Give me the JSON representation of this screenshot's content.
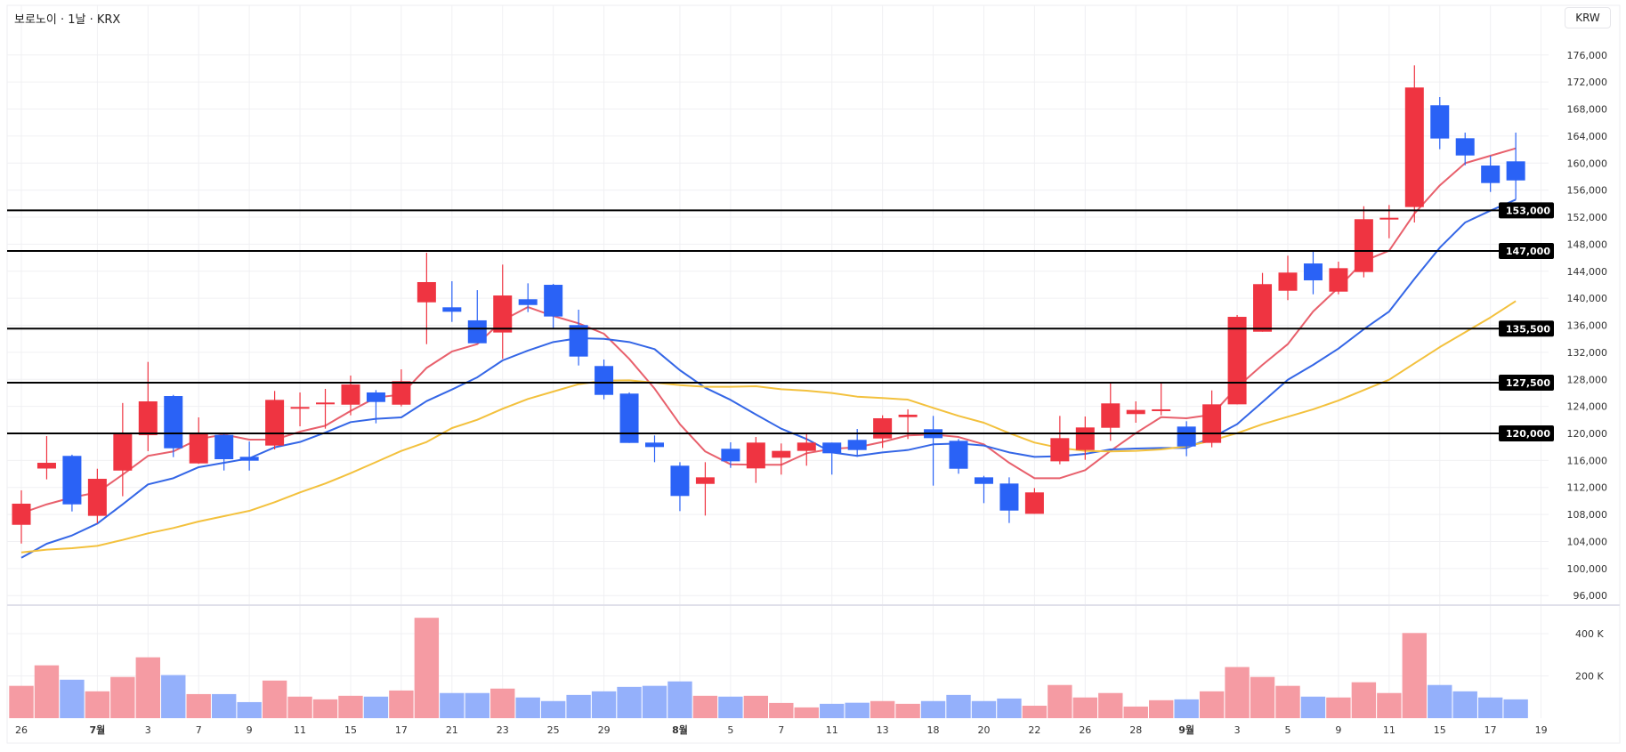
{
  "header": {
    "title": "보로노이 · 1날 · KRX",
    "currency_button": "KRW"
  },
  "colors": {
    "up": "#ef3441",
    "down": "#2a62f6",
    "vol_up": "#f59ba3",
    "vol_down": "#94b0fb",
    "ma_short": "#e8606c",
    "ma_mid": "#3466e6",
    "ma_long": "#f3c13d",
    "level_line": "#000000"
  },
  "chart_data": {
    "type": "candlestick",
    "title": "보로노이 · 1날 · KRX",
    "y_axis": {
      "min": 94000,
      "max": 178000,
      "ticks": [
        96000,
        100000,
        104000,
        108000,
        112000,
        116000,
        120000,
        124000,
        128000,
        132000,
        136000,
        140000,
        144000,
        148000,
        152000,
        156000,
        160000,
        164000,
        168000,
        172000,
        176000
      ]
    },
    "volume_axis": {
      "ticks": [
        {
          "value": 200000,
          "label": "200 K"
        },
        {
          "value": 400000,
          "label": "400 K"
        }
      ]
    },
    "x_labels": [
      {
        "bar": 0,
        "label": "26",
        "month": false
      },
      {
        "bar": 3,
        "label": "7월",
        "month": true
      },
      {
        "bar": 5,
        "label": "3",
        "month": false
      },
      {
        "bar": 7,
        "label": "7",
        "month": false
      },
      {
        "bar": 9,
        "label": "9",
        "month": false
      },
      {
        "bar": 11,
        "label": "11",
        "month": false
      },
      {
        "bar": 13,
        "label": "15",
        "month": false
      },
      {
        "bar": 15,
        "label": "17",
        "month": false
      },
      {
        "bar": 17,
        "label": "21",
        "month": false
      },
      {
        "bar": 19,
        "label": "23",
        "month": false
      },
      {
        "bar": 21,
        "label": "25",
        "month": false
      },
      {
        "bar": 23,
        "label": "29",
        "month": false
      },
      {
        "bar": 26,
        "label": "8월",
        "month": true
      },
      {
        "bar": 28,
        "label": "5",
        "month": false
      },
      {
        "bar": 30,
        "label": "7",
        "month": false
      },
      {
        "bar": 32,
        "label": "11",
        "month": false
      },
      {
        "bar": 34,
        "label": "13",
        "month": false
      },
      {
        "bar": 36,
        "label": "18",
        "month": false
      },
      {
        "bar": 38,
        "label": "20",
        "month": false
      },
      {
        "bar": 40,
        "label": "22",
        "month": false
      },
      {
        "bar": 42,
        "label": "26",
        "month": false
      },
      {
        "bar": 44,
        "label": "28",
        "month": false
      },
      {
        "bar": 46,
        "label": "9월",
        "month": true
      },
      {
        "bar": 48,
        "label": "3",
        "month": false
      },
      {
        "bar": 50,
        "label": "5",
        "month": false
      },
      {
        "bar": 52,
        "label": "9",
        "month": false
      },
      {
        "bar": 54,
        "label": "11",
        "month": false
      },
      {
        "bar": 56,
        "label": "15",
        "month": false
      },
      {
        "bar": 58,
        "label": "17",
        "month": false
      },
      {
        "bar": 60,
        "label": "19",
        "month": false
      }
    ],
    "level_lines": [
      {
        "value": 153000,
        "label": "153,000"
      },
      {
        "value": 147000,
        "label": "147,000"
      },
      {
        "value": 135500,
        "label": "135,500"
      },
      {
        "value": 127500,
        "label": "127,500"
      },
      {
        "value": 120000,
        "label": "120,000"
      }
    ],
    "candles_fields": [
      "date",
      "open",
      "high",
      "low",
      "close",
      "volume"
    ],
    "candles": [
      [
        "06-26",
        106470,
        111570,
        103700,
        109600,
        153000
      ],
      [
        "06-27",
        114800,
        119600,
        113200,
        115650,
        250000
      ],
      [
        "06-30",
        116670,
        116850,
        108450,
        109500,
        182000
      ],
      [
        "07-01",
        107800,
        114770,
        106700,
        113280,
        127000
      ],
      [
        "07-02",
        114500,
        124500,
        110700,
        120040,
        195000
      ],
      [
        "07-03",
        119740,
        130580,
        117370,
        124740,
        288000
      ],
      [
        "07-04",
        125530,
        125700,
        116490,
        117800,
        204000
      ],
      [
        "07-07",
        115560,
        122370,
        115500,
        120090,
        114000
      ],
      [
        "07-08",
        119780,
        119900,
        114510,
        116180,
        114000
      ],
      [
        "07-09",
        116530,
        118800,
        114500,
        115960,
        76000
      ],
      [
        "07-10",
        118200,
        126280,
        117630,
        124960,
        178000
      ],
      [
        "07-11",
        123900,
        126060,
        121050,
        123910,
        102000
      ],
      [
        "07-14",
        124560,
        126590,
        120700,
        124570,
        89000
      ],
      [
        "07-15",
        124250,
        128560,
        122680,
        127240,
        106000
      ],
      [
        "07-16",
        126060,
        126410,
        121490,
        124650,
        102000
      ],
      [
        "07-17",
        124250,
        129480,
        123990,
        127730,
        131000
      ],
      [
        "07-18",
        139400,
        146740,
        133210,
        142390,
        475000
      ],
      [
        "07-21",
        138660,
        142520,
        136500,
        138000,
        119000
      ],
      [
        "07-22",
        136730,
        141200,
        133340,
        133340,
        119000
      ],
      [
        "07-23",
        134930,
        144980,
        131020,
        140410,
        140000
      ],
      [
        "07-24",
        139850,
        142210,
        137950,
        139000,
        98000
      ],
      [
        "07-25",
        141990,
        142130,
        135500,
        137300,
        81000
      ],
      [
        "07-28",
        136030,
        138310,
        130050,
        131370,
        110000
      ],
      [
        "07-29",
        129970,
        130930,
        125040,
        125700,
        127000
      ],
      [
        "07-30",
        125890,
        126070,
        118590,
        118590,
        148000
      ],
      [
        "07-31",
        118640,
        119700,
        115740,
        117980,
        153000
      ],
      [
        "08-01",
        115220,
        115740,
        108500,
        110740,
        174000
      ],
      [
        "08-04",
        112530,
        115740,
        107840,
        113500,
        106000
      ],
      [
        "08-05",
        117720,
        118680,
        114900,
        115870,
        102000
      ],
      [
        "08-06",
        114820,
        119470,
        112670,
        118640,
        106000
      ],
      [
        "08-07",
        116400,
        118510,
        113900,
        117410,
        72000
      ],
      [
        "08-08",
        117410,
        119960,
        115220,
        118640,
        51000
      ],
      [
        "08-11",
        118640,
        118640,
        113900,
        117060,
        68000
      ],
      [
        "08-12",
        119040,
        120660,
        116530,
        117540,
        73000
      ],
      [
        "08-13",
        119250,
        122680,
        117850,
        122240,
        81000
      ],
      [
        "08-14",
        122410,
        123560,
        119170,
        122770,
        68000
      ],
      [
        "08-18",
        120620,
        122590,
        112270,
        119300,
        81000
      ],
      [
        "08-19",
        118900,
        119170,
        114030,
        114770,
        110000
      ],
      [
        "08-20",
        113500,
        113720,
        109680,
        112530,
        81000
      ],
      [
        "08-21",
        112580,
        113500,
        106740,
        108580,
        93000
      ],
      [
        "08-22",
        108100,
        111920,
        108100,
        111270,
        59000
      ],
      [
        "08-25",
        115870,
        122590,
        115430,
        119300,
        157000
      ],
      [
        "08-26",
        117540,
        122500,
        116090,
        120880,
        98000
      ],
      [
        "08-27",
        120830,
        127420,
        118900,
        124440,
        119000
      ],
      [
        "08-28",
        122860,
        124740,
        121580,
        123470,
        55000
      ],
      [
        "08-29",
        123420,
        127600,
        122680,
        123560,
        85000
      ],
      [
        "09-01",
        121010,
        121800,
        116620,
        118070,
        89000
      ],
      [
        "09-02",
        118600,
        126360,
        117940,
        124300,
        127000
      ],
      [
        "09-03",
        124300,
        137520,
        124300,
        137250,
        242000
      ],
      [
        "09-04",
        135050,
        143750,
        135050,
        142090,
        195000
      ],
      [
        "09-05",
        141110,
        146300,
        139720,
        143800,
        153000
      ],
      [
        "09-08",
        145150,
        147000,
        140590,
        142650,
        102000
      ],
      [
        "09-09",
        140980,
        145420,
        140590,
        144450,
        98000
      ],
      [
        "09-10",
        143880,
        153620,
        143090,
        151700,
        170000
      ],
      [
        "09-11",
        151740,
        153800,
        148880,
        151910,
        119000
      ],
      [
        "09-12",
        153500,
        174480,
        151210,
        171190,
        403000
      ],
      [
        "09-15",
        168560,
        169780,
        162060,
        163640,
        157000
      ],
      [
        "09-16",
        163680,
        164510,
        159680,
        161130,
        127000
      ],
      [
        "09-17",
        159640,
        161090,
        155730,
        157050,
        98000
      ],
      [
        "09-18",
        160260,
        164510,
        154600,
        157440,
        89000
      ]
    ],
    "series": [
      {
        "name": "MA short",
        "color_key": "ma_short",
        "values": [
          108190,
          109500,
          110520,
          111270,
          113900,
          116670,
          117330,
          119170,
          119830,
          119080,
          119080,
          120260,
          121140,
          123330,
          125310,
          125750,
          129700,
          132120,
          133210,
          136730,
          138700,
          137380,
          136290,
          134750,
          131020,
          126630,
          121360,
          117330,
          115430,
          115350,
          115350,
          117060,
          117720,
          117940,
          118730,
          119700,
          119830,
          119470,
          118380,
          115650,
          113370,
          113370,
          114560,
          117410,
          120040,
          122400,
          122240,
          122770,
          126850,
          130140,
          133210,
          138040,
          141570,
          145510,
          147040,
          152530,
          156700,
          159990,
          161090,
          162190
        ]
      },
      {
        "name": "MA mid",
        "color_key": "ma_mid",
        "values": [
          101600,
          103670,
          104900,
          106660,
          109500,
          112450,
          113370,
          115000,
          115650,
          116310,
          117940,
          118730,
          120130,
          121670,
          122150,
          122370,
          124780,
          126490,
          128300,
          130800,
          132250,
          133520,
          134090,
          134000,
          133520,
          132470,
          129350,
          126760,
          124960,
          122800,
          120700,
          119170,
          117190,
          116670,
          117190,
          117540,
          118380,
          118510,
          118200,
          117190,
          116530,
          116620,
          116970,
          117630,
          117760,
          117850,
          117850,
          119380,
          121360,
          124650,
          127940,
          130140,
          132550,
          135410,
          138040,
          142870,
          147480,
          151210,
          152970,
          154600
        ]
      },
      {
        "name": "MA long",
        "color_key": "ma_long",
        "values": [
          102390,
          102790,
          103010,
          103360,
          104240,
          105210,
          106000,
          106960,
          107750,
          108540,
          109820,
          111270,
          112580,
          114110,
          115750,
          117410,
          118730,
          120790,
          122020,
          123650,
          125100,
          126190,
          127280,
          127810,
          127860,
          127510,
          127150,
          126890,
          126890,
          126980,
          126540,
          126320,
          125970,
          125440,
          125230,
          125000,
          123780,
          122590,
          121580,
          120040,
          118640,
          117850,
          117410,
          117330,
          117410,
          117630,
          118070,
          118950,
          120040,
          121360,
          122460,
          123560,
          124870,
          126410,
          127940,
          130360,
          132770,
          134970,
          137160,
          139580
        ]
      }
    ]
  }
}
